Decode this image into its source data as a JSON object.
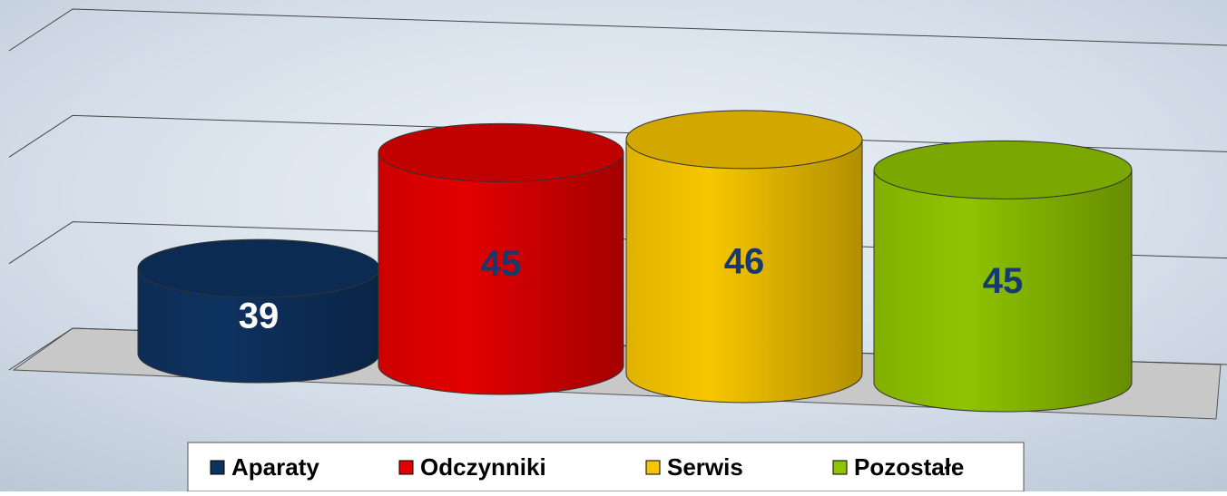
{
  "chart_data": {
    "type": "bar",
    "series": [
      {
        "name": "Aparaty",
        "color": "#0e3260",
        "values": [
          39
        ]
      },
      {
        "name": "Odczynniki",
        "color": "#e30000",
        "values": [
          45
        ]
      },
      {
        "name": "Serwis",
        "color": "#f7c600",
        "values": [
          46
        ]
      },
      {
        "name": "Pozostałe",
        "color": "#8fc400",
        "values": [
          45
        ]
      }
    ],
    "ylim": [
      35,
      50
    ],
    "yticks": [
      35,
      40,
      45,
      50
    ],
    "grid": true,
    "legend": "bottom"
  }
}
